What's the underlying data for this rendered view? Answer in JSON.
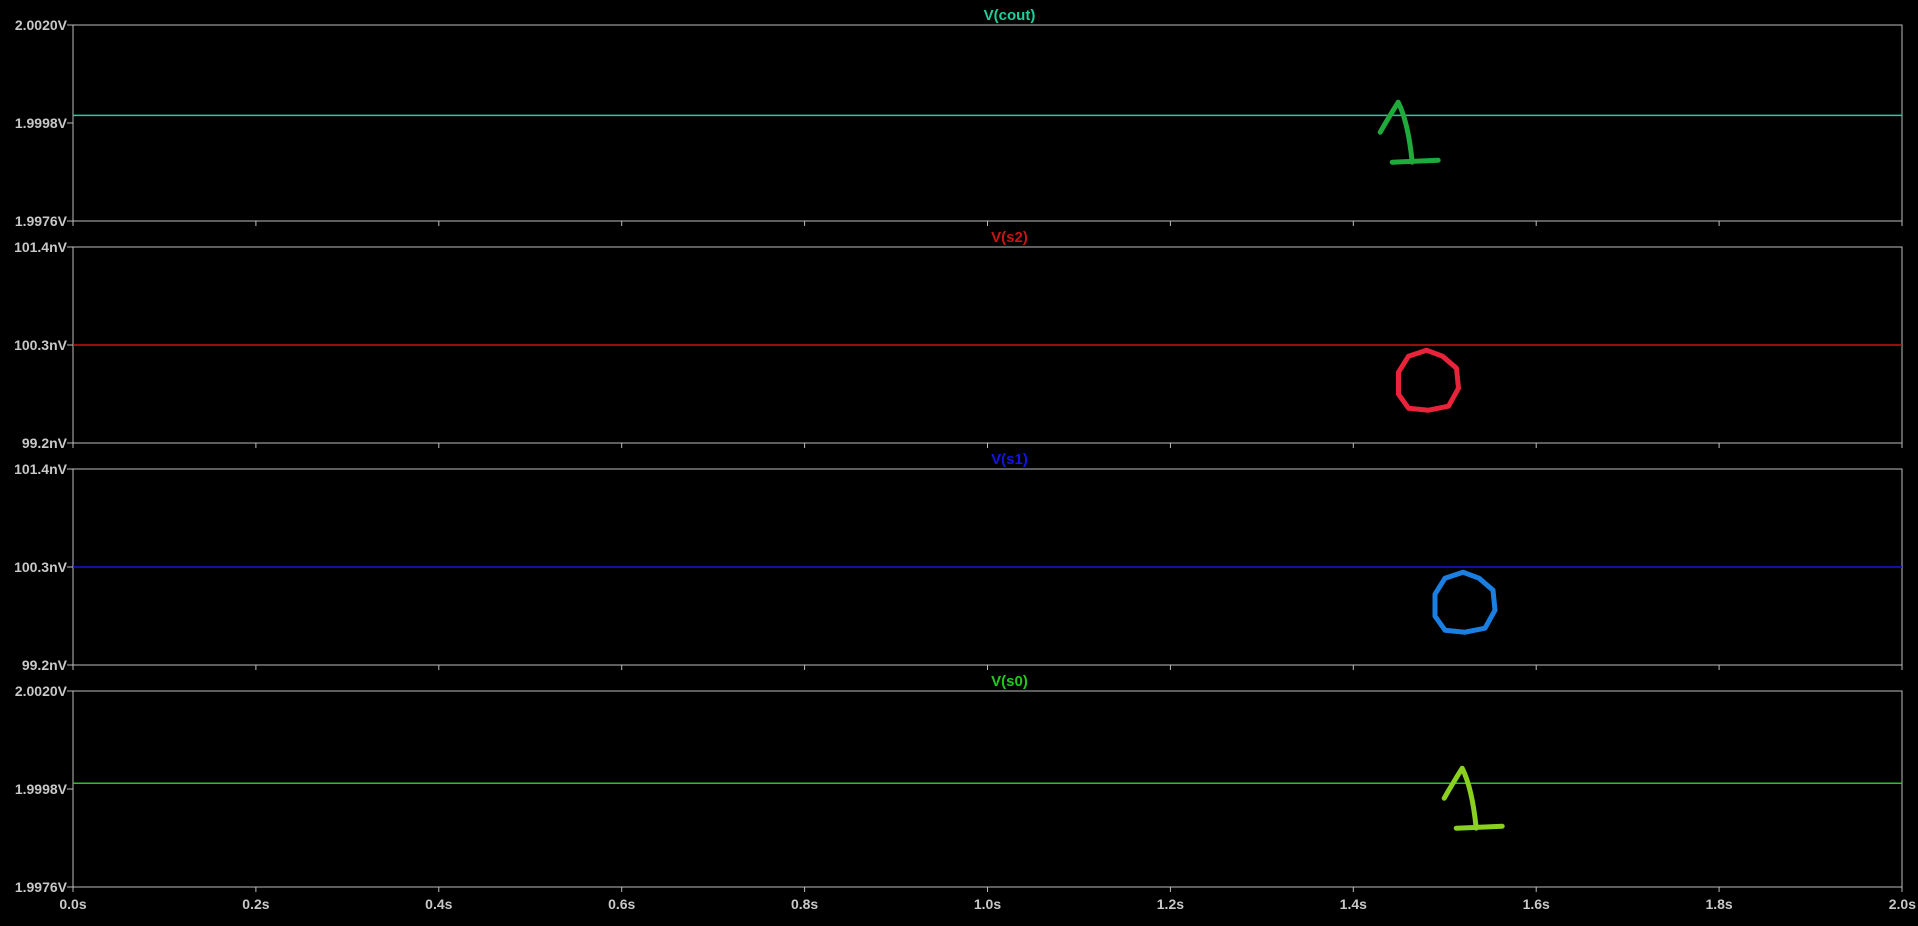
{
  "colors": {
    "background": "#000000",
    "frame": "#bdbdbd",
    "tick_text": "#c8c8c8"
  },
  "chart_data": {
    "type": "line",
    "x_tick_labels": [
      "0.0s",
      "0.2s",
      "0.4s",
      "0.6s",
      "0.8s",
      "1.0s",
      "1.2s",
      "1.4s",
      "1.6s",
      "1.8s",
      "2.0s"
    ],
    "x_ticks": [
      0,
      0.2,
      0.4,
      0.6,
      0.8,
      1.0,
      1.2,
      1.4,
      1.6,
      1.8,
      2.0
    ],
    "xlim": [
      0,
      2.0
    ],
    "grid": false,
    "panes": [
      {
        "title": "V(cout)",
        "color": "#1fd09a",
        "y_tick_labels": [
          "2.0020V",
          "1.9998V",
          "1.9976V"
        ],
        "y_ticks": [
          2.002,
          1.9998,
          1.9976
        ],
        "ylim": [
          1.9976,
          2.002
        ],
        "series": [
          {
            "x": [
              0,
              2.0
            ],
            "y": [
              1.99997,
              1.99997
            ]
          }
        ],
        "annotation": {
          "text": "1",
          "color": "#1faa3c",
          "x": 1.46
        }
      },
      {
        "title": "V(s2)",
        "color": "#c81414",
        "y_tick_labels": [
          "101.4nV",
          "100.3nV",
          "99.2nV"
        ],
        "y_ticks": [
          101.4,
          100.3,
          99.2
        ],
        "ylim": [
          99.2,
          101.4
        ],
        "series": [
          {
            "x": [
              0,
              2.0
            ],
            "y": [
              100.3,
              100.3
            ]
          }
        ],
        "annotation": {
          "text": "0",
          "color": "#e8233a",
          "x": 1.48
        }
      },
      {
        "title": "V(s1)",
        "color": "#1414e6",
        "y_tick_labels": [
          "101.4nV",
          "100.3nV",
          "99.2nV"
        ],
        "y_ticks": [
          101.4,
          100.3,
          99.2
        ],
        "ylim": [
          99.2,
          101.4
        ],
        "series": [
          {
            "x": [
              0,
              2.0
            ],
            "y": [
              100.3,
              100.3
            ]
          }
        ],
        "annotation": {
          "text": "0",
          "color": "#1a7fe0",
          "x": 1.52
        }
      },
      {
        "title": "V(s0)",
        "color": "#22c81e",
        "y_tick_labels": [
          "2.0020V",
          "1.9998V",
          "1.9976V"
        ],
        "y_ticks": [
          2.002,
          1.9998,
          1.9976
        ],
        "ylim": [
          1.9976,
          2.002
        ],
        "series": [
          {
            "x": [
              0,
              2.0
            ],
            "y": [
              1.99993,
              1.99993
            ]
          }
        ],
        "annotation": {
          "text": "1",
          "color": "#8ad01e",
          "x": 1.53
        }
      }
    ]
  }
}
